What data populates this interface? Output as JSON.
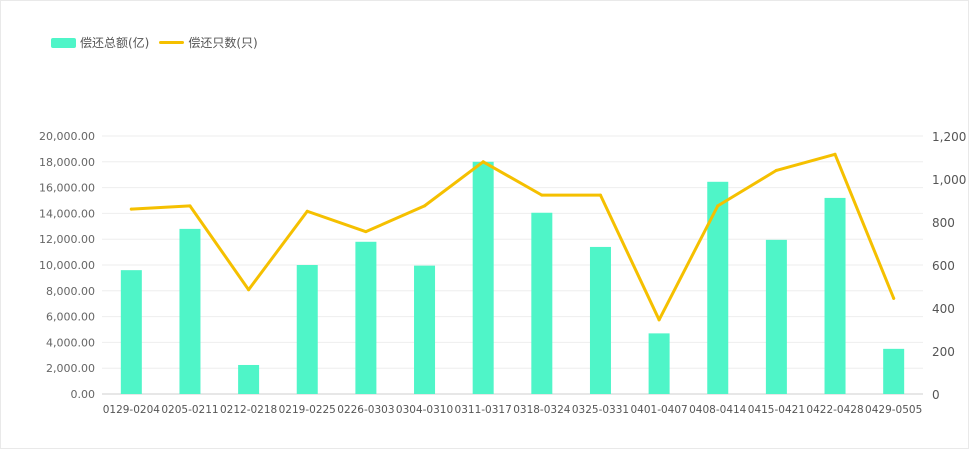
{
  "chart_data": {
    "type": "bar",
    "categories": [
      "0129-0204",
      "0205-0211",
      "0212-0218",
      "0219-0225",
      "0226-0303",
      "0304-0310",
      "0311-0317",
      "0318-0324",
      "0325-0331",
      "0401-0407",
      "0408-0414",
      "0415-0421",
      "0422-0428",
      "0429-0505"
    ],
    "series": [
      {
        "name": "偿还总额(亿)",
        "type": "bar",
        "axis": "left",
        "color": "#4ff5c8",
        "values": [
          9600,
          12800,
          2250,
          10000,
          11800,
          9950,
          18000,
          14050,
          11400,
          4700,
          16450,
          11950,
          15200,
          3500
        ]
      },
      {
        "name": "偿还只数(只)",
        "type": "line",
        "axis": "right",
        "color": "#f5c000",
        "values": [
          860,
          875,
          485,
          850,
          755,
          875,
          1080,
          925,
          925,
          345,
          875,
          1040,
          1115,
          445
        ]
      }
    ],
    "y_left": {
      "min": 0,
      "max": 20000,
      "step": 2000,
      "ticks": [
        "0.00",
        "2,000.00",
        "4,000.00",
        "6,000.00",
        "8,000.00",
        "10,000.00",
        "12,000.00",
        "14,000.00",
        "16,000.00",
        "18,000.00",
        "20,000.00"
      ]
    },
    "y_right": {
      "min": 0,
      "max": 1200,
      "step": 200,
      "ticks": [
        "0",
        "200",
        "400",
        "600",
        "800",
        "1,000",
        "1,200"
      ]
    },
    "grid": true,
    "legend_position": "top-left"
  }
}
